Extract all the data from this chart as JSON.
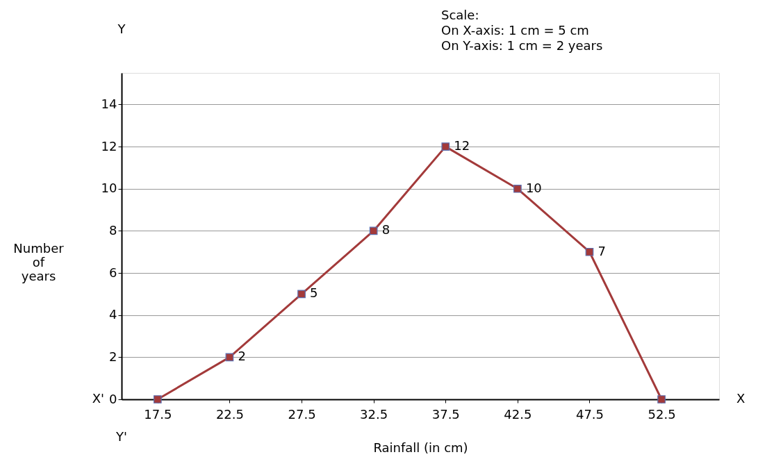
{
  "chart_data": {
    "type": "line",
    "xlabel": "Rainfall (in cm)",
    "ylabel": "Number of years",
    "x": [
      17.5,
      22.5,
      27.5,
      32.5,
      37.5,
      42.5,
      47.5,
      52.5
    ],
    "series": [
      {
        "color": "#a33a3a",
        "values": [
          0,
          2,
          5,
          8,
          12,
          10,
          7,
          0
        ],
        "value_labels": [
          null,
          "2",
          "5",
          "8",
          "12",
          "10",
          "7",
          null
        ]
      }
    ],
    "xlim": [
      15,
      56.5
    ],
    "ylim": [
      0,
      15.5
    ],
    "xticks": [
      17.5,
      22.5,
      27.5,
      32.5,
      37.5,
      42.5,
      47.5,
      52.5
    ],
    "yticks": [
      0,
      2,
      4,
      6,
      8,
      10,
      12,
      14
    ],
    "grid": "y",
    "marker": "square",
    "line_style": "solid",
    "annotations": [
      "Scale:",
      "On X-axis: 1 cm = 5 cm",
      "On Y-axis: 1 cm = 2 years",
      "X'",
      "X",
      "Y",
      "Y'"
    ]
  }
}
